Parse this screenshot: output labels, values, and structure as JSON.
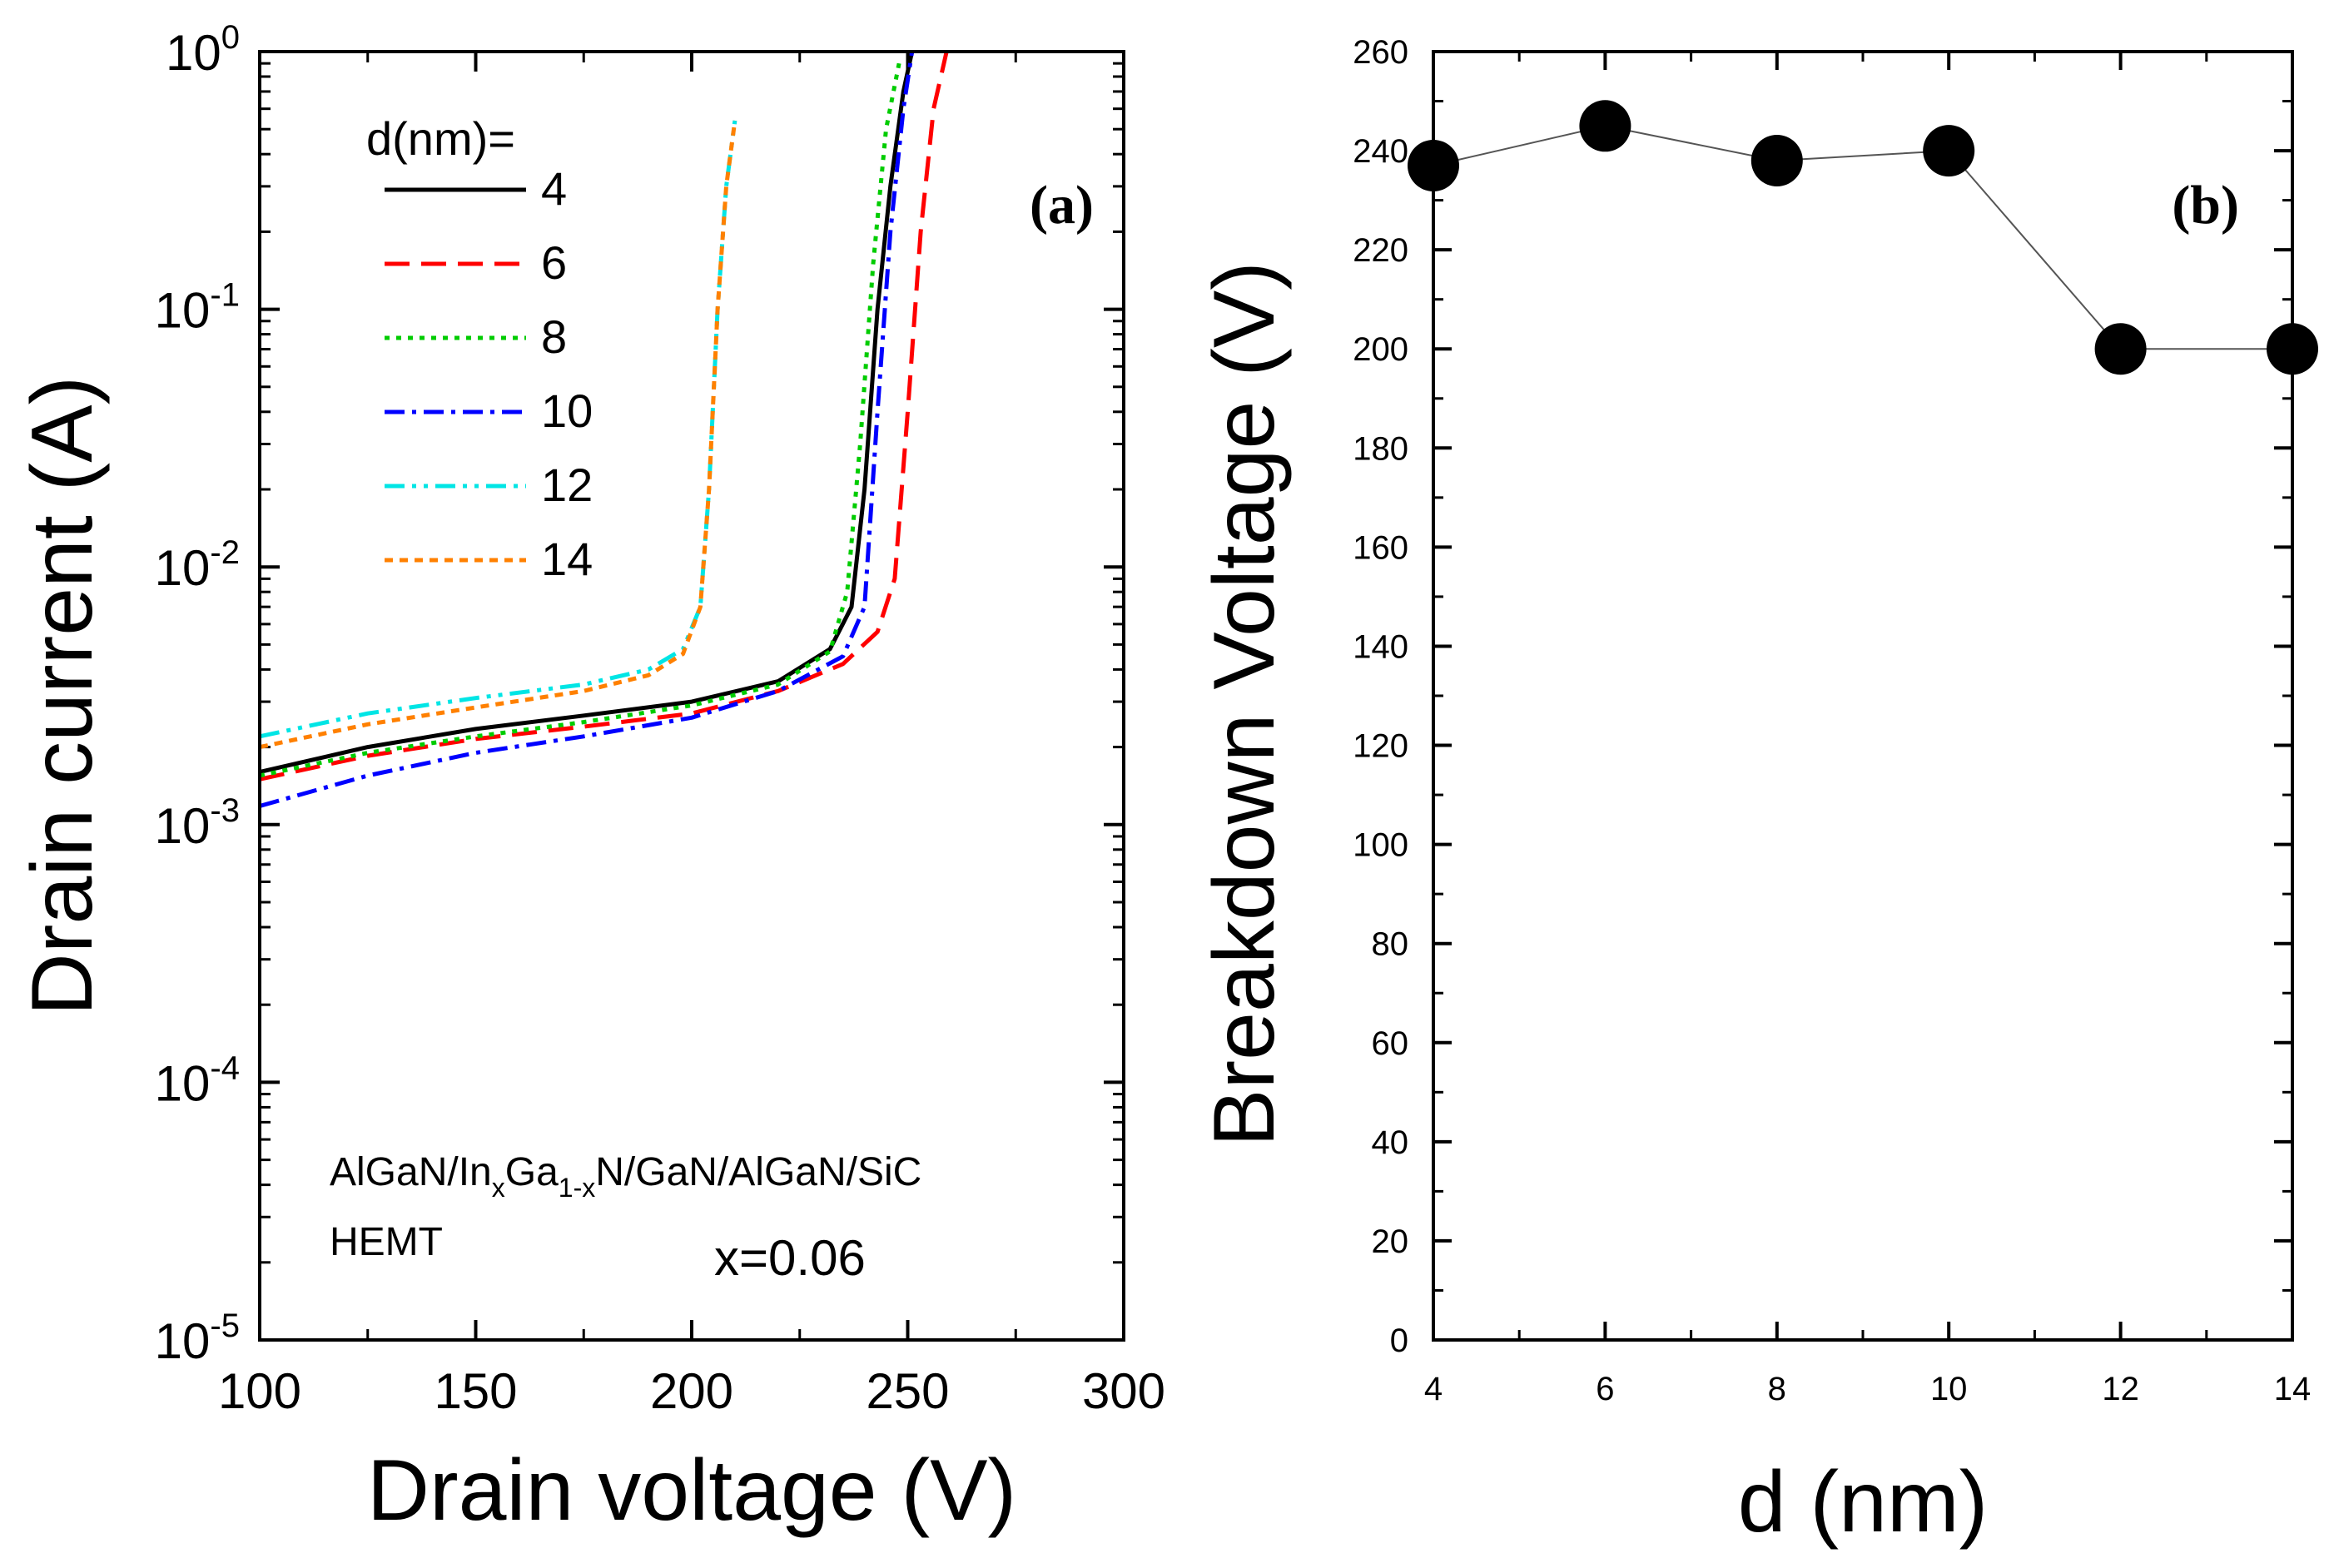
{
  "chart_data": [
    {
      "type": "line",
      "panel_label": "(a)",
      "xlabel": "Drain voltage (V)",
      "ylabel": "Drain current (A)",
      "xlim": [
        100,
        300
      ],
      "ylim_log10": [
        -5,
        0
      ],
      "yscale": "log",
      "x_ticks": [
        100,
        150,
        200,
        250,
        300
      ],
      "y_ticks": [
        {
          "exp": -5,
          "base": "10",
          "sup": "-5"
        },
        {
          "exp": -4,
          "base": "10",
          "sup": "-4"
        },
        {
          "exp": -3,
          "base": "10",
          "sup": "-3"
        },
        {
          "exp": -2,
          "base": "10",
          "sup": "-2"
        },
        {
          "exp": -1,
          "base": "10",
          "sup": "-1"
        },
        {
          "exp": 0,
          "base": "10",
          "sup": "0"
        }
      ],
      "legend_title": "d(nm)=",
      "annotation": {
        "structure_parts": [
          "AlGaN/In",
          "x",
          "Ga",
          "1-x",
          "N/GaN/AlGaN/SiC"
        ],
        "device": "HEMT",
        "composition": "x=0.06"
      },
      "series": [
        {
          "name": "4",
          "color": "#000000",
          "dash": "none",
          "points": [
            [
              100,
              0.0016
            ],
            [
              125,
              0.002
            ],
            [
              150,
              0.00235
            ],
            [
              175,
              0.00265
            ],
            [
              200,
              0.003
            ],
            [
              220,
              0.0036
            ],
            [
              232,
              0.0048
            ],
            [
              237,
              0.007
            ],
            [
              240,
              0.02
            ],
            [
              243,
              0.1
            ],
            [
              246,
              0.3
            ],
            [
              249,
              0.7
            ],
            [
              251,
              1.0
            ]
          ]
        },
        {
          "name": "6",
          "color": "#ff0000",
          "dash": "30,14",
          "points": [
            [
              100,
              0.0015
            ],
            [
              125,
              0.00185
            ],
            [
              150,
              0.00215
            ],
            [
              175,
              0.0024
            ],
            [
              200,
              0.0027
            ],
            [
              220,
              0.0033
            ],
            [
              235,
              0.0042
            ],
            [
              243,
              0.0056
            ],
            [
              247,
              0.009
            ],
            [
              250,
              0.04
            ],
            [
              253,
              0.2
            ],
            [
              256,
              0.6
            ],
            [
              259,
              1.0
            ]
          ]
        },
        {
          "name": "8",
          "color": "#00cc00",
          "dash": "6,8",
          "points": [
            [
              100,
              0.00155
            ],
            [
              125,
              0.0019
            ],
            [
              150,
              0.0022
            ],
            [
              175,
              0.0025
            ],
            [
              200,
              0.0029
            ],
            [
              220,
              0.0035
            ],
            [
              232,
              0.0047
            ],
            [
              236,
              0.008
            ],
            [
              239,
              0.03
            ],
            [
              242,
              0.15
            ],
            [
              245,
              0.5
            ],
            [
              248,
              0.9
            ]
          ]
        },
        {
          "name": "10",
          "color": "#0000ff",
          "dash": "24,9,5,9",
          "points": [
            [
              100,
              0.00118
            ],
            [
              125,
              0.00155
            ],
            [
              150,
              0.0019
            ],
            [
              175,
              0.0022
            ],
            [
              200,
              0.0026
            ],
            [
              220,
              0.0033
            ],
            [
              235,
              0.0045
            ],
            [
              240,
              0.007
            ],
            [
              243,
              0.04
            ],
            [
              246,
              0.2
            ],
            [
              249,
              0.6
            ],
            [
              251,
              1.0
            ]
          ]
        },
        {
          "name": "12",
          "color": "#00e5e5",
          "dash": "24,9,5,9,5,9",
          "points": [
            [
              100,
              0.0022
            ],
            [
              125,
              0.0027
            ],
            [
              150,
              0.0031
            ],
            [
              175,
              0.0035
            ],
            [
              190,
              0.004
            ],
            [
              198,
              0.0048
            ],
            [
              202,
              0.007
            ],
            [
              204,
              0.02
            ],
            [
              206,
              0.1
            ],
            [
              208,
              0.3
            ],
            [
              210,
              0.54
            ]
          ]
        },
        {
          "name": "14",
          "color": "#ff8000",
          "dash": "10,8",
          "points": [
            [
              100,
              0.002
            ],
            [
              125,
              0.00245
            ],
            [
              150,
              0.00285
            ],
            [
              175,
              0.0033
            ],
            [
              190,
              0.0038
            ],
            [
              198,
              0.0046
            ],
            [
              202,
              0.007
            ],
            [
              204,
              0.02
            ],
            [
              206,
              0.1
            ],
            [
              208,
              0.3
            ],
            [
              210,
              0.54
            ]
          ]
        }
      ]
    },
    {
      "type": "line",
      "panel_label": "(b)",
      "xlabel": "d (nm)",
      "ylabel": "Breakdown Voltage (V)",
      "xlim": [
        4,
        14
      ],
      "ylim": [
        0,
        260
      ],
      "x_ticks": [
        4,
        6,
        8,
        10,
        12,
        14
      ],
      "y_ticks": [
        0,
        20,
        40,
        60,
        80,
        100,
        120,
        140,
        160,
        180,
        200,
        220,
        240,
        260
      ],
      "marker": "circle",
      "color": "#000000",
      "series": [
        {
          "name": "Breakdown Voltage",
          "x": [
            4,
            6,
            8,
            10,
            12,
            14
          ],
          "values": [
            237,
            245,
            238,
            240,
            200,
            200
          ]
        }
      ]
    }
  ]
}
